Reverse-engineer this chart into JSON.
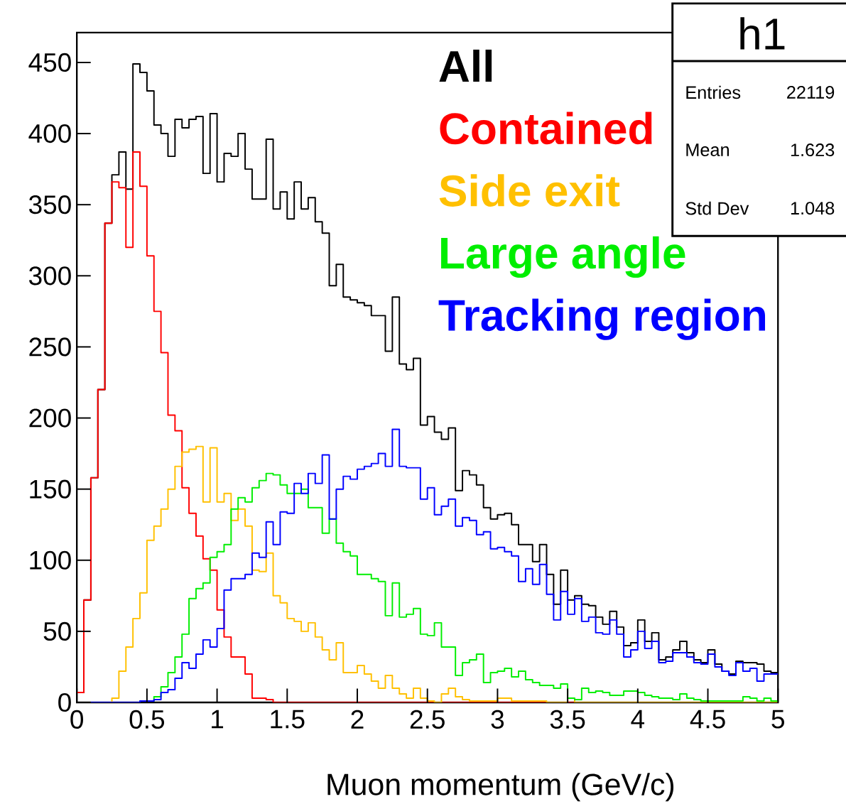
{
  "chart_data": {
    "type": "histogram",
    "xlabel": "Muon momentum (GeV/c)",
    "bins": [
      0,
      0.05,
      0.1,
      0.15,
      0.2,
      0.25,
      0.3,
      0.35,
      0.4,
      0.45,
      0.5,
      0.55,
      0.6,
      0.65,
      0.7,
      0.75,
      0.8,
      0.85,
      0.9,
      0.95,
      1,
      1.05,
      1.1,
      1.15,
      1.2,
      1.25,
      1.3,
      1.35,
      1.4,
      1.45,
      1.5,
      1.55,
      1.6,
      1.65,
      1.7,
      1.75,
      1.8,
      1.85,
      1.9,
      1.95,
      2,
      2.05,
      2.1,
      2.15,
      2.2,
      2.25,
      2.3,
      2.35,
      2.4,
      2.45,
      2.5,
      2.55,
      2.6,
      2.65,
      2.7,
      2.75,
      2.8,
      2.85,
      2.9,
      2.95,
      3,
      3.05,
      3.1,
      3.15,
      3.2,
      3.25,
      3.3,
      3.35,
      3.4,
      3.45,
      3.5,
      3.55,
      3.6,
      3.65,
      3.7,
      3.75,
      3.8,
      3.85,
      3.9,
      3.95,
      4,
      4.05,
      4.1,
      4.15,
      4.2,
      4.25,
      4.3,
      4.35,
      4.4,
      4.45,
      4.5,
      4.55,
      4.6,
      4.65,
      4.7,
      4.75,
      4.8,
      4.85,
      4.9,
      4.95,
      5
    ],
    "series": [
      {
        "name": "All",
        "color": "#000000",
        "values": [
          7,
          72,
          158,
          220,
          337,
          371,
          387,
          361,
          449,
          443,
          430,
          406,
          400,
          384,
          410,
          404,
          410,
          412,
          372,
          414,
          366,
          386,
          384,
          400,
          375,
          354,
          354,
          396,
          347,
          359,
          340,
          366,
          347,
          355,
          338,
          330,
          293,
          308,
          285,
          283,
          281,
          279,
          272,
          272,
          247,
          285,
          238,
          234,
          242,
          195,
          201,
          190,
          185,
          193,
          149,
          163,
          160,
          153,
          137,
          129,
          132,
          133,
          125,
          111,
          111,
          99,
          111,
          90,
          69,
          93,
          72,
          75,
          69,
          68,
          60,
          55,
          64,
          53,
          40,
          42,
          58,
          43,
          49,
          30,
          32,
          37,
          43,
          35,
          30,
          28,
          37,
          27,
          22,
          20,
          29,
          28,
          28,
          27,
          22,
          21
        ]
      },
      {
        "name": "Contained",
        "color": "#ff0000",
        "values": [
          7,
          72,
          158,
          220,
          337,
          366,
          362,
          320,
          387,
          363,
          314,
          275,
          246,
          202,
          191,
          151,
          133,
          117,
          101,
          93,
          65,
          46,
          32,
          32,
          20,
          3,
          3,
          2,
          0,
          0,
          0,
          0,
          0,
          0,
          0,
          0,
          0,
          0,
          0,
          0,
          0,
          0,
          0,
          0,
          0,
          0,
          0,
          0,
          0,
          0,
          0,
          0,
          0,
          0,
          0,
          0,
          0,
          0,
          0,
          0,
          0,
          0,
          0,
          0,
          0,
          0,
          0,
          0,
          0,
          0,
          0,
          0,
          0,
          0,
          0,
          0,
          0,
          0,
          0,
          0,
          0,
          0,
          0,
          0,
          0,
          0,
          0,
          0,
          0,
          0,
          0,
          0,
          0,
          0,
          0,
          0,
          0,
          0,
          0,
          0
        ]
      },
      {
        "name": "Side exit",
        "color": "#ffc000",
        "values": [
          0,
          0,
          0,
          0,
          0,
          3,
          22,
          39,
          59,
          77,
          114,
          124,
          136,
          150,
          166,
          176,
          178,
          180,
          141,
          179,
          141,
          147,
          128,
          136,
          124,
          93,
          92,
          105,
          75,
          70,
          59,
          57,
          50,
          56,
          46,
          37,
          30,
          42,
          21,
          21,
          26,
          20,
          15,
          10,
          19,
          10,
          6,
          3,
          10,
          3,
          1,
          0,
          6,
          10,
          4,
          2,
          1,
          1,
          1,
          1,
          3,
          3,
          1,
          1,
          1,
          1,
          1,
          0,
          0,
          0,
          3,
          0,
          0,
          0,
          0,
          0,
          0,
          0,
          0,
          0,
          0,
          0,
          0,
          0,
          0,
          0,
          0,
          0,
          0,
          0,
          0,
          0,
          0,
          0,
          0,
          0,
          0,
          0,
          0,
          0
        ]
      },
      {
        "name": "Large angle",
        "color": "#00ee00",
        "values": [
          0,
          0,
          0,
          0,
          0,
          0,
          0,
          0,
          0,
          1,
          1,
          4,
          11,
          21,
          32,
          48,
          73,
          80,
          84,
          102,
          106,
          111,
          136,
          144,
          141,
          151,
          156,
          161,
          160,
          153,
          147,
          147,
          150,
          137,
          137,
          119,
          129,
          112,
          106,
          103,
          90,
          90,
          87,
          85,
          61,
          84,
          60,
          62,
          66,
          48,
          47,
          56,
          39,
          39,
          19,
          28,
          30,
          34,
          14,
          21,
          22,
          24,
          18,
          22,
          16,
          14,
          12,
          12,
          10,
          13,
          3,
          2,
          10,
          7,
          8,
          7,
          5,
          5,
          8,
          8,
          7,
          5,
          4,
          3,
          3,
          2,
          6,
          3,
          2,
          1,
          1,
          1,
          1,
          1,
          1,
          4,
          3,
          1,
          3,
          1
        ]
      },
      {
        "name": "Tracking region",
        "color": "#0000ff",
        "values": [
          0,
          0,
          0,
          0,
          0,
          0,
          0,
          0,
          0,
          1,
          1,
          2,
          7,
          9,
          17,
          28,
          24,
          34,
          44,
          39,
          52,
          79,
          87,
          87,
          90,
          105,
          102,
          127,
          111,
          134,
          133,
          154,
          147,
          161,
          154,
          174,
          129,
          150,
          159,
          157,
          164,
          166,
          168,
          175,
          166,
          192,
          166,
          165,
          165,
          143,
          151,
          132,
          138,
          143,
          124,
          130,
          128,
          118,
          120,
          108,
          109,
          106,
          103,
          85,
          94,
          83,
          97,
          76,
          58,
          78,
          62,
          73,
          57,
          60,
          49,
          48,
          58,
          48,
          32,
          37,
          50,
          38,
          43,
          28,
          29,
          35,
          35,
          32,
          28,
          27,
          34,
          25,
          22,
          19,
          28,
          22,
          24,
          15,
          20,
          20
        ]
      }
    ],
    "xlim": [
      0,
      5
    ],
    "ylim": [
      0,
      471
    ],
    "xticks": [
      0,
      0.5,
      1,
      1.5,
      2,
      2.5,
      3,
      3.5,
      4,
      4.5,
      5
    ],
    "yticks": [
      0,
      50,
      100,
      150,
      200,
      250,
      300,
      350,
      400,
      450
    ],
    "legend": "top right",
    "annotations": [
      "h1",
      "Entries",
      "22119",
      "Mean",
      "1.623",
      "Std Dev",
      "1.048"
    ]
  }
}
